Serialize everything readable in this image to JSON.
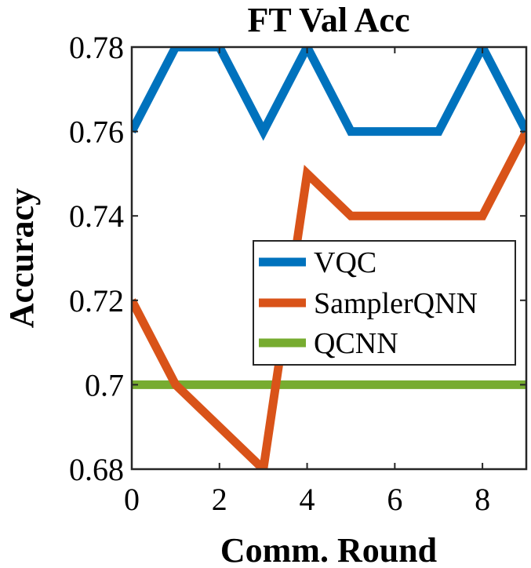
{
  "chart_data": {
    "type": "line",
    "title": "FT Val Acc",
    "xlabel": "Comm. Round",
    "ylabel": "Accuracy",
    "xlim": [
      0,
      9
    ],
    "ylim": [
      0.68,
      0.78
    ],
    "xticks": [
      0,
      2,
      4,
      6,
      8
    ],
    "xtick_labels": [
      "0",
      "2",
      "4",
      "6",
      "8"
    ],
    "yticks": [
      0.68,
      0.7,
      0.72,
      0.74,
      0.76,
      0.78
    ],
    "ytick_labels": [
      "0.68",
      "0.7",
      "0.72",
      "0.74",
      "0.76",
      "0.78"
    ],
    "x": [
      0,
      1,
      2,
      3,
      4,
      5,
      6,
      7,
      8,
      9
    ],
    "series": [
      {
        "name": "VQC",
        "color": "#0072BD",
        "values": [
          0.76,
          0.78,
          0.78,
          0.76,
          0.78,
          0.76,
          0.76,
          0.76,
          0.78,
          0.76
        ]
      },
      {
        "name": "SamplerQNN",
        "color": "#D95319",
        "values": [
          0.72,
          0.7,
          0.69,
          0.68,
          0.75,
          0.74,
          0.74,
          0.74,
          0.74,
          0.76
        ]
      },
      {
        "name": "QCNN",
        "color": "#77AC30",
        "values": [
          0.7,
          0.7,
          0.7,
          0.7,
          0.7,
          0.7,
          0.7,
          0.7,
          0.7,
          0.7
        ]
      }
    ],
    "legend_position": "center-right",
    "grid": false
  }
}
